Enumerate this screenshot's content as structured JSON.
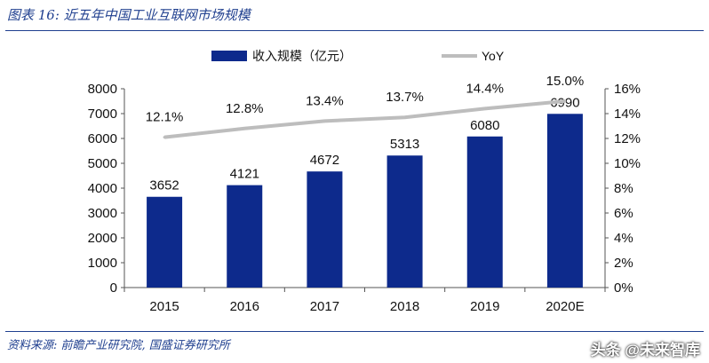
{
  "header": {
    "title": "图表 16: 近五年中国工业互联网市场规模"
  },
  "footer": {
    "source": "资料来源: 前瞻产业研究院, 国盛证券研究所"
  },
  "watermark": {
    "text": "头条 @未来智库"
  },
  "colors": {
    "bar": "#0d2a8c",
    "line": "#bdbdbd",
    "rule": "#1f3f8f"
  },
  "chart_data": {
    "type": "bar",
    "title": "",
    "categories": [
      "2015",
      "2016",
      "2017",
      "2018",
      "2019",
      "2020E"
    ],
    "series": [
      {
        "name": "收入规模（亿元）",
        "type": "bar",
        "axis": "left",
        "values": [
          3652,
          4121,
          4672,
          5313,
          6080,
          6990
        ],
        "labels": [
          "3652",
          "4121",
          "4672",
          "5313",
          "6080",
          "6990"
        ]
      },
      {
        "name": "YoY",
        "type": "line",
        "axis": "right",
        "values": [
          12.1,
          12.8,
          13.4,
          13.7,
          14.4,
          15.0
        ],
        "labels": [
          "12.1%",
          "12.8%",
          "13.4%",
          "13.7%",
          "14.4%",
          "15.0%"
        ]
      }
    ],
    "y_left": {
      "ylim": [
        0,
        8000
      ],
      "ticks": [
        "0",
        "1000",
        "2000",
        "3000",
        "4000",
        "5000",
        "6000",
        "7000",
        "8000"
      ]
    },
    "y_right": {
      "ylim": [
        0,
        16
      ],
      "ticks": [
        "0%",
        "2%",
        "4%",
        "6%",
        "8%",
        "10%",
        "12%",
        "14%",
        "16%"
      ]
    },
    "legend": "top-center",
    "grid": false
  }
}
